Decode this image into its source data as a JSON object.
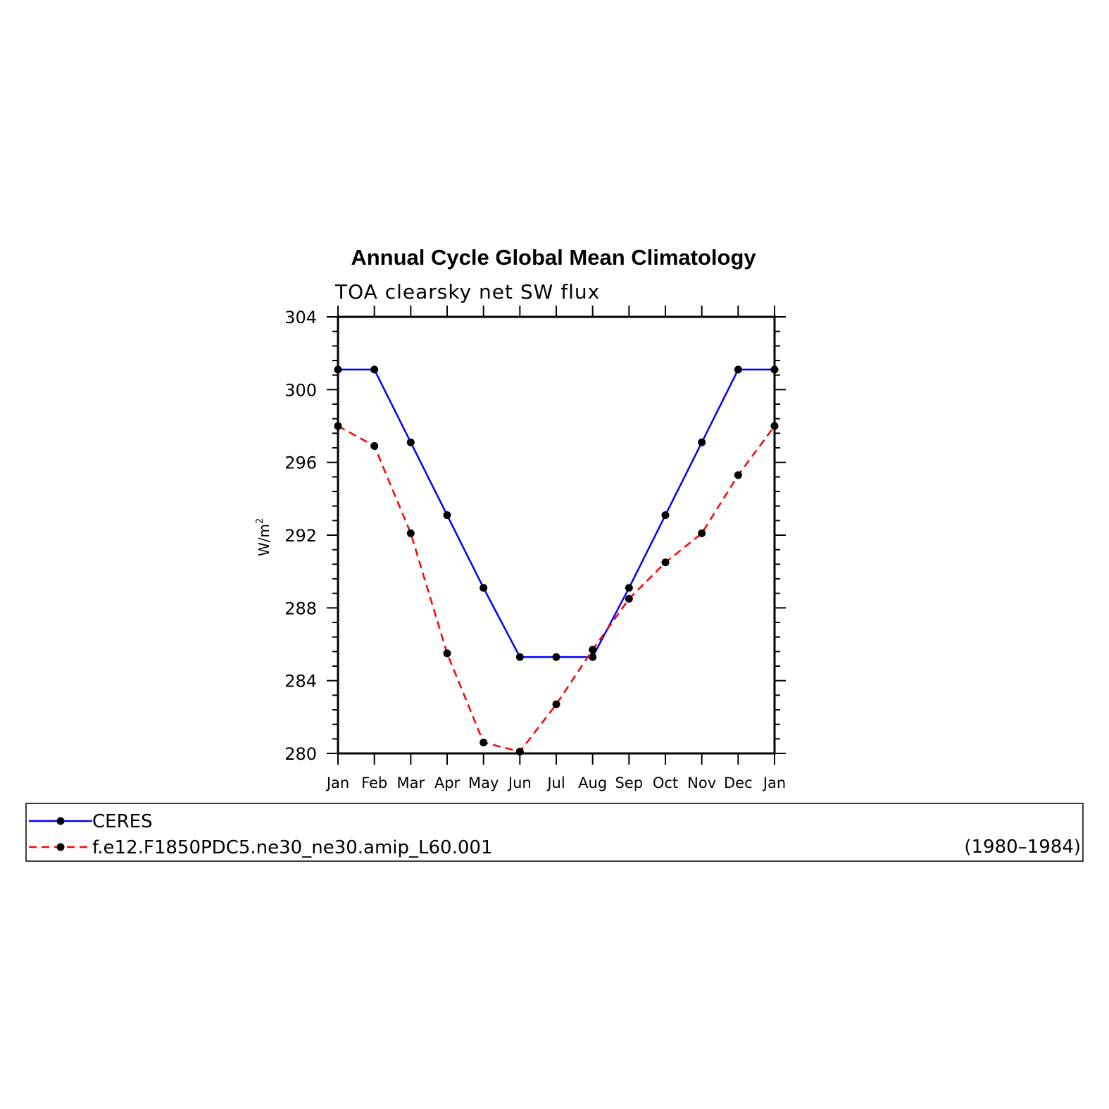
{
  "chart_data": {
    "type": "line",
    "title": "Annual Cycle Global Mean Climatology",
    "subtitle": "TOA clearsky net SW flux",
    "ylabel": "W/m",
    "ylabel_sup": "2",
    "ylim": [
      280,
      304
    ],
    "yticks": [
      280,
      284,
      288,
      292,
      296,
      300,
      304
    ],
    "categories": [
      "Jan",
      "Feb",
      "Mar",
      "Apr",
      "May",
      "Jun",
      "Jul",
      "Aug",
      "Sep",
      "Oct",
      "Nov",
      "Dec",
      "Jan"
    ],
    "series": [
      {
        "name": "CERES",
        "color": "#0000ff",
        "dash": "solid",
        "values": [
          301.1,
          301.1,
          297.1,
          293.1,
          289.1,
          285.3,
          285.3,
          285.3,
          289.1,
          293.1,
          297.1,
          301.1,
          301.1
        ]
      },
      {
        "name": "f.e12.F1850PDC5.ne30_ne30.amip_L60.001",
        "color": "#ff0000",
        "dash": "dashed",
        "values": [
          298.0,
          296.9,
          292.1,
          285.5,
          280.6,
          280.1,
          282.7,
          285.7,
          288.5,
          290.5,
          292.1,
          295.3,
          298.0
        ]
      }
    ],
    "legend": {
      "placement": "bottom",
      "note": "(1980–1984)"
    },
    "grid": false,
    "marker_color": "#000000"
  }
}
